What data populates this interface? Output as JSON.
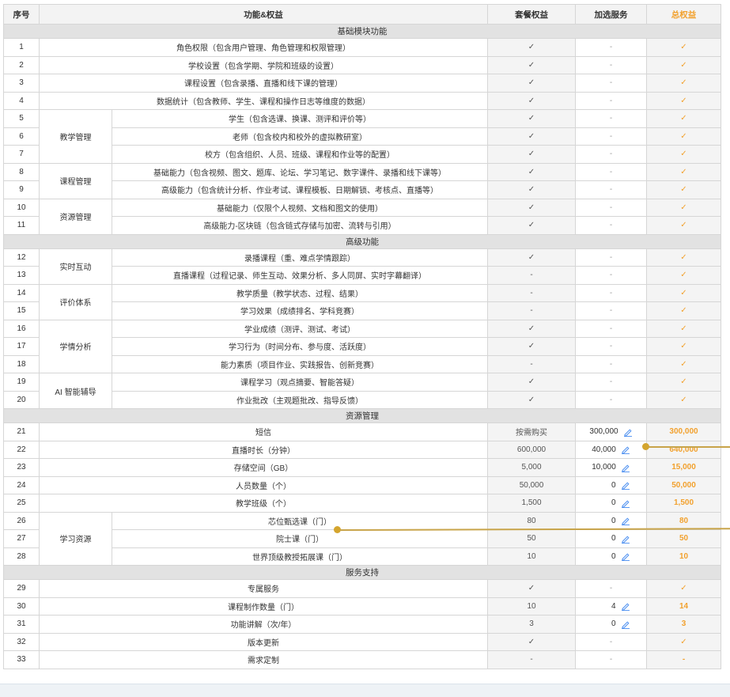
{
  "header": {
    "index": "序号",
    "feature": "功能&权益",
    "package": "套餐权益",
    "addon": "加选服务",
    "total": "总权益"
  },
  "rows": [
    {
      "type": "section",
      "label": "基础模块功能"
    },
    {
      "type": "row",
      "num": "1",
      "cat": "",
      "catspan": 0,
      "feature": "角色权限（包含用户管理、角色管理和权限管理）",
      "pkg": "✓",
      "addon": "-",
      "edit": false,
      "total": "✓"
    },
    {
      "type": "row",
      "num": "2",
      "cat": "",
      "catspan": 0,
      "feature": "学校设置（包含学期、学院和班级的设置）",
      "pkg": "✓",
      "addon": "-",
      "edit": false,
      "total": "✓"
    },
    {
      "type": "row",
      "num": "3",
      "cat": "",
      "catspan": 0,
      "feature": "课程设置（包含录播、直播和线下课的管理）",
      "pkg": "✓",
      "addon": "-",
      "edit": false,
      "total": "✓"
    },
    {
      "type": "row",
      "num": "4",
      "cat": "",
      "catspan": 0,
      "feature": "数据统计（包含教师、学生、课程和操作日志等维度的数据）",
      "pkg": "✓",
      "addon": "-",
      "edit": false,
      "total": "✓"
    },
    {
      "type": "row",
      "num": "5",
      "cat": "教学管理",
      "catspan": 3,
      "feature": "学生（包含选课、换课、测评和评价等）",
      "pkg": "✓",
      "addon": "-",
      "edit": false,
      "total": "✓"
    },
    {
      "type": "row",
      "num": "6",
      "cat": null,
      "feature": "老师（包含校内和校外的虚拟教研室）",
      "pkg": "✓",
      "addon": "-",
      "edit": false,
      "total": "✓"
    },
    {
      "type": "row",
      "num": "7",
      "cat": null,
      "feature": "校方（包含组织、人员、班级、课程和作业等的配置）",
      "pkg": "✓",
      "addon": "-",
      "edit": false,
      "total": "✓"
    },
    {
      "type": "row",
      "num": "8",
      "cat": "课程管理",
      "catspan": 2,
      "feature": "基础能力（包含视频、图文、题库、论坛、学习笔记、数字课件、录播和线下课等）",
      "pkg": "✓",
      "addon": "-",
      "edit": false,
      "total": "✓"
    },
    {
      "type": "row",
      "num": "9",
      "cat": null,
      "feature": "高级能力（包含统计分析、作业考试、课程模板、日期解锁、考核点、直播等）",
      "pkg": "✓",
      "addon": "-",
      "edit": false,
      "total": "✓"
    },
    {
      "type": "row",
      "num": "10",
      "cat": "资源管理",
      "catspan": 2,
      "feature": "基础能力（仅限个人视频、文档和图文的使用）",
      "pkg": "✓",
      "addon": "-",
      "edit": false,
      "total": "✓"
    },
    {
      "type": "row",
      "num": "11",
      "cat": null,
      "feature": "高级能力-区块链（包含链式存储与加密、流转与引用）",
      "pkg": "✓",
      "addon": "-",
      "edit": false,
      "total": "✓"
    },
    {
      "type": "section",
      "label": "高级功能"
    },
    {
      "type": "row",
      "num": "12",
      "cat": "实时互动",
      "catspan": 2,
      "feature": "录播课程（重、难点学情跟踪）",
      "pkg": "✓",
      "addon": "-",
      "edit": false,
      "total": "✓"
    },
    {
      "type": "row",
      "num": "13",
      "cat": null,
      "feature": "直播课程（过程记录、师生互动、效果分析、多人同屏、实时字幕翻译）",
      "pkg": "-",
      "addon": "-",
      "edit": false,
      "total": "✓"
    },
    {
      "type": "row",
      "num": "14",
      "cat": "评价体系",
      "catspan": 2,
      "feature": "教学质量（教学状态、过程、结果）",
      "pkg": "-",
      "addon": "-",
      "edit": false,
      "total": "✓"
    },
    {
      "type": "row",
      "num": "15",
      "cat": null,
      "feature": "学习效果（成绩排名、学科竞赛）",
      "pkg": "-",
      "addon": "-",
      "edit": false,
      "total": "✓"
    },
    {
      "type": "row",
      "num": "16",
      "cat": "学情分析",
      "catspan": 3,
      "feature": "学业成绩（测评、测试、考试）",
      "pkg": "✓",
      "addon": "-",
      "edit": false,
      "total": "✓"
    },
    {
      "type": "row",
      "num": "17",
      "cat": null,
      "feature": "学习行为（时间分布、参与度、活跃度）",
      "pkg": "✓",
      "addon": "-",
      "edit": false,
      "total": "✓"
    },
    {
      "type": "row",
      "num": "18",
      "cat": null,
      "feature": "能力素质（项目作业、实践报告、创新竞赛）",
      "pkg": "-",
      "addon": "-",
      "edit": false,
      "total": "✓"
    },
    {
      "type": "row",
      "num": "19",
      "cat": "AI 智能辅导",
      "catspan": 2,
      "feature": "课程学习（观点摘要、智能答疑）",
      "pkg": "✓",
      "addon": "-",
      "edit": false,
      "total": "✓"
    },
    {
      "type": "row",
      "num": "20",
      "cat": null,
      "feature": "作业批改（主观题批改、指导反馈）",
      "pkg": "✓",
      "addon": "-",
      "edit": false,
      "total": "✓"
    },
    {
      "type": "section",
      "label": "资源管理"
    },
    {
      "type": "row",
      "num": "21",
      "cat": "",
      "catspan": 0,
      "feature": "短信",
      "pkg": "按需购买",
      "addon": "300,000",
      "edit": true,
      "total": "300,000"
    },
    {
      "type": "row",
      "num": "22",
      "cat": "",
      "catspan": 0,
      "feature": "直播时长（分钟）",
      "pkg": "600,000",
      "addon": "40,000",
      "edit": true,
      "total": "640,000"
    },
    {
      "type": "row",
      "num": "23",
      "cat": "",
      "catspan": 0,
      "feature": "存储空间（GB）",
      "pkg": "5,000",
      "addon": "10,000",
      "edit": true,
      "total": "15,000"
    },
    {
      "type": "row",
      "num": "24",
      "cat": "",
      "catspan": 0,
      "feature": "人员数量（个）",
      "pkg": "50,000",
      "addon": "0",
      "edit": true,
      "total": "50,000"
    },
    {
      "type": "row",
      "num": "25",
      "cat": "",
      "catspan": 0,
      "feature": "教学班级（个）",
      "pkg": "1,500",
      "addon": "0",
      "edit": true,
      "total": "1,500"
    },
    {
      "type": "row",
      "num": "26",
      "cat": "学习资源",
      "catspan": 3,
      "feature": "芯位甄选课（门）",
      "pkg": "80",
      "addon": "0",
      "edit": true,
      "total": "80"
    },
    {
      "type": "row",
      "num": "27",
      "cat": null,
      "feature": "院士课（门）",
      "pkg": "50",
      "addon": "0",
      "edit": true,
      "total": "50"
    },
    {
      "type": "row",
      "num": "28",
      "cat": null,
      "feature": "世界顶级教授拓展课（门）",
      "pkg": "10",
      "addon": "0",
      "edit": true,
      "total": "10"
    },
    {
      "type": "section",
      "label": "服务支持"
    },
    {
      "type": "row",
      "num": "29",
      "cat": "",
      "catspan": 0,
      "feature": "专属服务",
      "pkg": "✓",
      "addon": "-",
      "edit": false,
      "total": "✓"
    },
    {
      "type": "row",
      "num": "30",
      "cat": "",
      "catspan": 0,
      "feature": "课程制作数量（门）",
      "pkg": "10",
      "addon": "4",
      "edit": true,
      "total": "14"
    },
    {
      "type": "row",
      "num": "31",
      "cat": "",
      "catspan": 0,
      "feature": "功能讲解（次/年）",
      "pkg": "3",
      "addon": "0",
      "edit": true,
      "total": "3"
    },
    {
      "type": "row",
      "num": "32",
      "cat": "",
      "catspan": 0,
      "feature": "版本更新",
      "pkg": "✓",
      "addon": "-",
      "edit": false,
      "total": "✓"
    },
    {
      "type": "row",
      "num": "33",
      "cat": "",
      "catspan": 0,
      "feature": "需求定制",
      "pkg": "-",
      "addon": "-",
      "edit": false,
      "total": "-"
    }
  ],
  "colors": {
    "accent": "#f2a12e",
    "edit": "#4a8ef0",
    "callout": "#c8a44a"
  },
  "icons": {
    "edit": "pencil-edit-icon"
  }
}
